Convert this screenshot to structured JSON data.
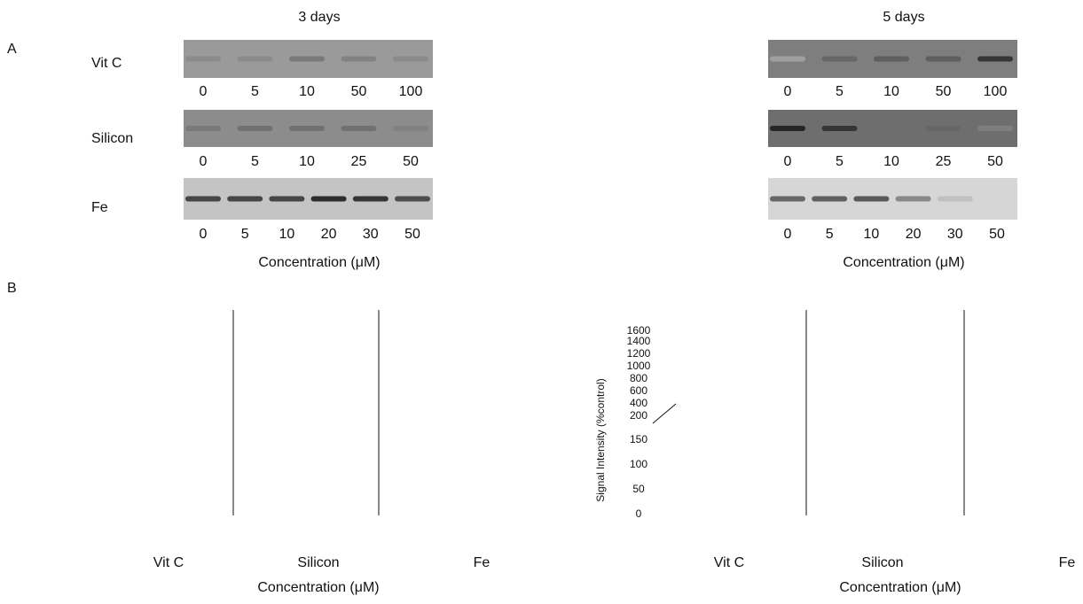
{
  "panel_a": {
    "label": "A",
    "columns": [
      {
        "title": "3 days",
        "xlabel": "Concentration (μM)",
        "rows": [
          {
            "name": "Vit C",
            "lanes": [
              0,
              5,
              10,
              50,
              100
            ]
          },
          {
            "name": "Silicon",
            "lanes": [
              0,
              5,
              10,
              25,
              50
            ]
          },
          {
            "name": "Fe",
            "lanes": [
              0,
              5,
              10,
              20,
              30,
              50
            ]
          }
        ]
      },
      {
        "title": "5 days",
        "xlabel": "Concentration (μM)",
        "rows": [
          {
            "lanes": [
              0,
              5,
              10,
              50,
              100
            ]
          },
          {
            "lanes": [
              0,
              5,
              10,
              25,
              50
            ]
          },
          {
            "lanes": [
              0,
              5,
              10,
              20,
              30,
              50
            ]
          }
        ]
      }
    ]
  },
  "panel_b": {
    "label": "B",
    "ylabel": "Signal Intensity (%control)",
    "yticks": [
      1600,
      1400,
      1200,
      1000,
      800,
      600,
      400,
      200,
      150,
      100,
      50,
      0
    ],
    "charts": [
      {
        "groups": [
          "Vit C",
          "Silicon",
          "Fe"
        ],
        "xlabel": "Concentration (μM)"
      },
      {
        "groups": [
          "Vit C",
          "Silicon",
          "Fe"
        ],
        "xlabel": "Concentration (μM)"
      }
    ]
  }
}
